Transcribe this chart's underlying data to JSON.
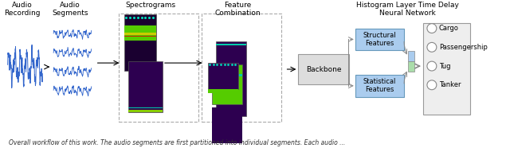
{
  "title": "",
  "caption": "Overall workflow of this work. The audio segments are first partitioned into individual segments. Each audio ...",
  "bg_color": "#ffffff",
  "section_labels": {
    "audio_recording": "Audio\nRecording",
    "audio_segments": "Audio\nSegments",
    "spectrograms": "Spectrograms",
    "feature_combination": "Feature\nCombination",
    "histogram_nn": "Histogram Layer Time Delay\nNeural Network"
  },
  "feature_boxes": {
    "structural": "Structural\nFeatures",
    "statistical": "Statistical\nFeatures",
    "backbone": "Backbone"
  },
  "output_labels": [
    "Cargo",
    "Passengership",
    "Tug",
    "Tanker"
  ],
  "colors": {
    "white": "#ffffff",
    "black": "#000000",
    "blue_wave": "#3366cc",
    "spectrogram_purple": "#2d0050",
    "spectrogram_green": "#55cc00",
    "spectrogram_teal": "#00ccaa",
    "spectrogram_yellow": "#cccc00",
    "spectrogram_red": "#cc2200",
    "feature_blue": "#aaccee",
    "feature_green_light": "#aaddaa",
    "structural_bg": "#aaccee",
    "statistical_bg": "#aaccee",
    "backbone_bg": "#dddddd",
    "output_box_bg": "#eeeeee",
    "arrow_gray": "#888888",
    "dashed_box": "#aaaaaa",
    "caption_color": "#333333"
  }
}
